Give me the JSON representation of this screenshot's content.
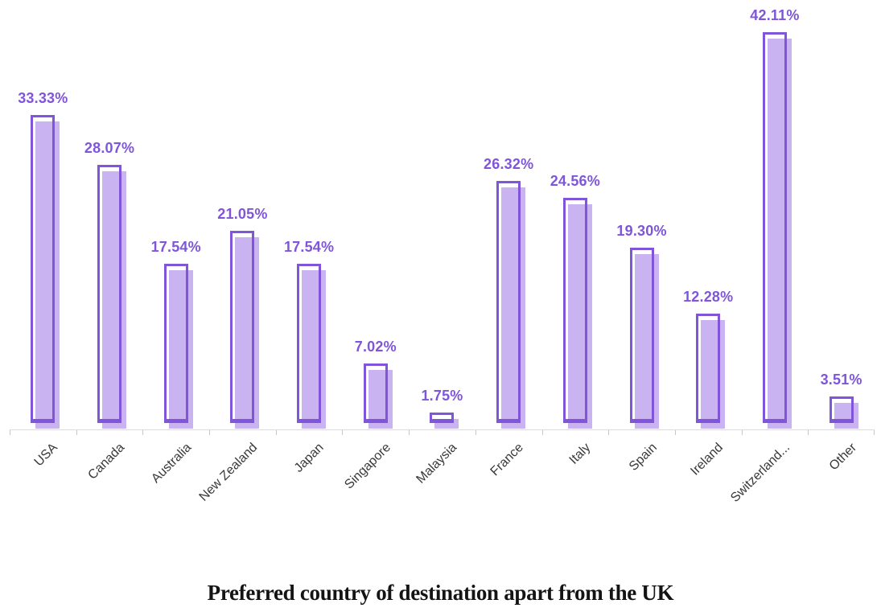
{
  "title": "Preferred country of destination apart from the UK",
  "colors": {
    "bar_fill": "#c9b4f1",
    "bar_outline": "#8155d9",
    "value_label": "#7f55da",
    "axis_line": "#dcdcdc",
    "tick": "#c8c8c8",
    "axis_label": "#383838",
    "title": "#141414",
    "background": "#ffffff"
  },
  "chart_data": {
    "type": "bar",
    "title": "Preferred country of destination apart from the UK",
    "xlabel": "",
    "ylabel": "",
    "categories": [
      "USA",
      "Canada",
      "Australia",
      "New Zealand",
      "Japan",
      "Singapore",
      "Malaysia",
      "France",
      "Italy",
      "Spain",
      "Ireland",
      "Switzerland...",
      "Other"
    ],
    "values": [
      33.33,
      28.07,
      17.54,
      21.05,
      17.54,
      7.02,
      1.75,
      26.32,
      24.56,
      19.3,
      12.28,
      42.11,
      3.51
    ],
    "value_labels": [
      "33.33%",
      "28.07%",
      "17.54%",
      "21.05%",
      "17.54%",
      "7.02%",
      "1.75%",
      "26.32%",
      "24.56%",
      "19.30%",
      "12.28%",
      "42.11%",
      "3.51%"
    ],
    "unit": "%",
    "ylim": [
      0,
      45.5
    ],
    "grid": false,
    "legend": null,
    "x_tick_rotation": -45,
    "value_label_position": "above-bar",
    "title_position": "bottom"
  }
}
